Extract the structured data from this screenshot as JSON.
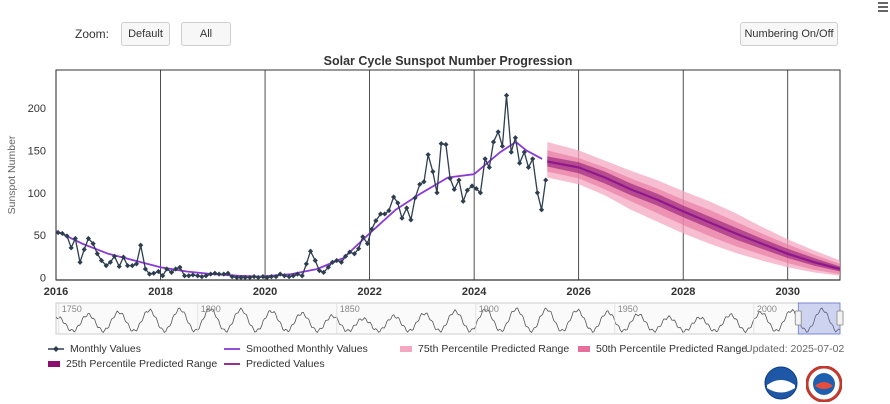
{
  "toolbar": {
    "zoom_label": "Zoom:",
    "default_label": "Default",
    "all_label": "All",
    "numbering_label": "Numbering On/Off"
  },
  "chart_data": {
    "type": "line",
    "title": "Solar Cycle Sunspot Number Progression",
    "xlabel": "",
    "ylabel": "Sunspot Number",
    "xlim": [
      2016.0,
      2031.0
    ],
    "ylim": [
      -3,
      245
    ],
    "x_ticks": [
      "2016",
      "2018",
      "2020",
      "2022",
      "2024",
      "2026",
      "2028",
      "2030"
    ],
    "y_ticks": [
      "0",
      "50",
      "100",
      "150",
      "200"
    ],
    "grid": true,
    "legend_position": "bottom",
    "colors": {
      "monthly": "#2d3e50",
      "smoothed": "#8a3ad6",
      "p75": "#f4a7c0",
      "p50": "#e76f9a",
      "p25": "#8b0f6f",
      "predicted": "#8e178e"
    },
    "series": [
      {
        "name": "Monthly Values",
        "x": [
          2016.04,
          2016.12,
          2016.21,
          2016.29,
          2016.37,
          2016.46,
          2016.54,
          2016.62,
          2016.71,
          2016.79,
          2016.87,
          2016.96,
          2017.04,
          2017.12,
          2017.21,
          2017.29,
          2017.37,
          2017.46,
          2017.54,
          2017.62,
          2017.71,
          2017.79,
          2017.87,
          2017.96,
          2018.04,
          2018.12,
          2018.21,
          2018.29,
          2018.37,
          2018.46,
          2018.54,
          2018.62,
          2018.71,
          2018.79,
          2018.87,
          2018.96,
          2019.04,
          2019.12,
          2019.21,
          2019.29,
          2019.37,
          2019.46,
          2019.54,
          2019.62,
          2019.71,
          2019.79,
          2019.87,
          2019.96,
          2020.04,
          2020.12,
          2020.21,
          2020.29,
          2020.37,
          2020.46,
          2020.54,
          2020.62,
          2020.71,
          2020.79,
          2020.87,
          2020.96,
          2021.04,
          2021.12,
          2021.21,
          2021.29,
          2021.37,
          2021.46,
          2021.54,
          2021.62,
          2021.71,
          2021.79,
          2021.87,
          2021.96,
          2022.04,
          2022.12,
          2022.21,
          2022.29,
          2022.37,
          2022.46,
          2022.54,
          2022.62,
          2022.71,
          2022.79,
          2022.87,
          2022.96,
          2023.04,
          2023.12,
          2023.21,
          2023.29,
          2023.37,
          2023.46,
          2023.54,
          2023.62,
          2023.71,
          2023.79,
          2023.87,
          2023.96,
          2024.04,
          2024.12,
          2024.21,
          2024.29,
          2024.37,
          2024.46,
          2024.54,
          2024.62,
          2024.71,
          2024.79,
          2024.87,
          2024.96,
          2025.04,
          2025.12,
          2025.21,
          2025.29,
          2025.37
        ],
        "values": [
          53,
          52,
          49,
          35,
          46,
          18,
          33,
          46,
          40,
          28,
          20,
          14,
          18,
          25,
          13,
          24,
          14,
          14,
          16,
          38,
          10,
          4,
          5,
          7,
          2,
          10,
          6,
          10,
          12,
          2,
          2,
          3,
          2,
          1,
          2,
          4,
          5,
          4,
          4,
          5,
          1,
          0,
          0,
          0,
          0,
          1,
          0,
          1,
          0,
          1,
          1,
          4,
          2,
          1,
          2,
          4,
          2,
          16,
          31,
          20,
          8,
          6,
          12,
          18,
          20,
          18,
          25,
          30,
          28,
          34,
          48,
          40,
          57,
          67,
          75,
          75,
          79,
          95,
          88,
          70,
          82,
          68,
          94,
          110,
          113,
          145,
          125,
          100,
          158,
          157,
          117,
          104,
          115,
          90,
          103,
          108,
          105,
          100,
          140,
          130,
          160,
          172,
          155,
          215,
          148,
          165,
          135,
          148,
          130,
          140,
          100,
          80,
          115
        ]
      },
      {
        "name": "Smoothed Monthly Values",
        "x": [
          2016.0,
          2016.5,
          2017.0,
          2017.5,
          2018.0,
          2018.5,
          2019.0,
          2019.5,
          2019.9,
          2020.5,
          2021.0,
          2021.5,
          2022.0,
          2022.5,
          2023.0,
          2023.5,
          2024.0,
          2024.5,
          2024.8,
          2025.0,
          2025.3
        ],
        "values": [
          55,
          40,
          28,
          20,
          12,
          7,
          4,
          2,
          1,
          4,
          10,
          23,
          52,
          80,
          100,
          118,
          122,
          148,
          160,
          150,
          140
        ]
      },
      {
        "name": "Predicted Values",
        "x": [
          2025.4,
          2026.0,
          2026.5,
          2027.0,
          2027.5,
          2028.0,
          2028.5,
          2029.0,
          2029.5,
          2030.0,
          2030.5,
          2031.0
        ],
        "values": [
          137,
          130,
          118,
          104,
          92,
          78,
          65,
          52,
          40,
          28,
          18,
          10
        ]
      }
    ],
    "bands": [
      {
        "name": "75th Percentile Predicted Range",
        "x": [
          2025.4,
          2026.0,
          2026.5,
          2027.0,
          2027.5,
          2028.0,
          2028.5,
          2029.0,
          2029.5,
          2030.0,
          2030.5,
          2031.0
        ],
        "low": [
          118,
          110,
          97,
          80,
          66,
          52,
          40,
          29,
          20,
          12,
          6,
          2
        ],
        "high": [
          160,
          150,
          138,
          126,
          115,
          102,
          90,
          76,
          60,
          45,
          32,
          20
        ]
      },
      {
        "name": "50th Percentile Predicted Range",
        "x": [
          2025.4,
          2026.0,
          2026.5,
          2027.0,
          2027.5,
          2028.0,
          2028.5,
          2029.0,
          2029.5,
          2030.0,
          2030.5,
          2031.0
        ],
        "low": [
          125,
          117,
          104,
          90,
          76,
          62,
          49,
          37,
          27,
          17,
          9,
          4
        ],
        "high": [
          150,
          141,
          130,
          117,
          105,
          92,
          80,
          66,
          52,
          39,
          27,
          16
        ]
      },
      {
        "name": "25th Percentile Predicted Range",
        "x": [
          2025.4,
          2026.0,
          2026.5,
          2027.0,
          2027.5,
          2028.0,
          2028.5,
          2029.0,
          2029.5,
          2030.0,
          2030.5,
          2031.0
        ],
        "low": [
          131,
          123,
          111,
          97,
          85,
          71,
          58,
          45,
          34,
          23,
          14,
          7
        ],
        "high": [
          143,
          136,
          125,
          111,
          99,
          85,
          72,
          59,
          46,
          34,
          23,
          13
        ]
      }
    ],
    "navigator": {
      "tick_labels": [
        "1750",
        "1800",
        "1850",
        "1900",
        "1950",
        "2000"
      ],
      "x_range": [
        1749,
        2031
      ],
      "selected_range": [
        2016,
        2031
      ]
    }
  },
  "legend": {
    "monthly": "Monthly Values",
    "smoothed": "Smoothed Monthly Values",
    "p75": "75th Percentile Predicted Range",
    "p50": "50th Percentile Predicted Range",
    "p25": "25th Percentile Predicted Range",
    "predicted": "Predicted Values"
  },
  "updated_text": "Updated: 2025-07-02"
}
